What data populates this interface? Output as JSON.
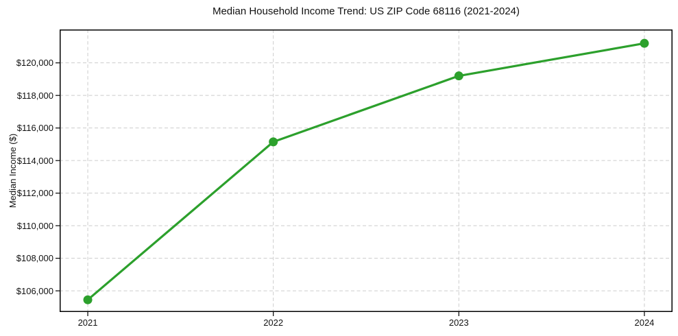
{
  "chart_data": {
    "type": "line",
    "title": "Median Household Income Trend: US ZIP Code 68116 (2021-2024)",
    "xlabel": "",
    "ylabel": "Median Income ($)",
    "categories": [
      "2021",
      "2022",
      "2023",
      "2024"
    ],
    "series": [
      {
        "name": "Median Household Income",
        "values": [
          105450,
          115150,
          119200,
          121200
        ]
      }
    ],
    "ylim": [
      104700,
      122050
    ],
    "yticks": [
      106000,
      108000,
      110000,
      112000,
      114000,
      116000,
      118000,
      120000
    ],
    "ytick_labels": [
      "$106,000",
      "$108,000",
      "$110,000",
      "$112,000",
      "$114,000",
      "$116,000",
      "$118,000",
      "$120,000"
    ],
    "grid": true,
    "grid_style": "dashed",
    "legend": "none",
    "colors": {
      "line": "#2ca02c",
      "marker": "#2ca02c",
      "grid": "#cccccc",
      "spine": "#000000",
      "text": "#111111",
      "background": "#ffffff"
    }
  }
}
